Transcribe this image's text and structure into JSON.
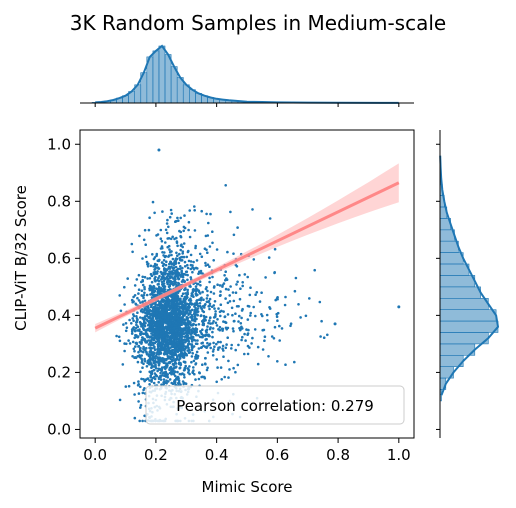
{
  "chart_data": {
    "type": "scatter",
    "title": "3K Random Samples in Medium-scale",
    "xlabel": "Mimic Score",
    "ylabel": "CLIP-ViT B/32 Score",
    "xlim": [
      -0.05,
      1.05
    ],
    "ylim": [
      -0.03,
      1.05
    ],
    "xticks": [
      "0.0",
      "0.2",
      "0.4",
      "0.6",
      "0.8",
      "1.0"
    ],
    "yticks": [
      "0.0",
      "0.2",
      "0.4",
      "0.6",
      "0.8",
      "1.0"
    ],
    "sample_count": 3000,
    "scatter_color": "#1f77b4",
    "regression": {
      "color": "#ff7f7f",
      "band_color": "#ffb3b3",
      "slope": 0.51,
      "intercept": 0.355,
      "x_range": [
        0.0,
        1.0
      ]
    },
    "annotation": "Pearson correlation: 0.279",
    "annotation_placement": "bottom-right",
    "marginal_x": {
      "type": "histogram+kde",
      "bin_centers": [
        0.0,
        0.02,
        0.04,
        0.06,
        0.08,
        0.1,
        0.12,
        0.14,
        0.16,
        0.18,
        0.2,
        0.22,
        0.24,
        0.26,
        0.28,
        0.3,
        0.32,
        0.34,
        0.36,
        0.38,
        0.4,
        0.42,
        0.44,
        0.46,
        0.48,
        0.5,
        0.55,
        0.6,
        0.7,
        0.8,
        1.0
      ],
      "counts": [
        5,
        8,
        15,
        25,
        40,
        60,
        95,
        150,
        250,
        380,
        430,
        470,
        400,
        300,
        210,
        150,
        110,
        80,
        60,
        45,
        35,
        28,
        22,
        18,
        14,
        11,
        8,
        5,
        3,
        2,
        1
      ]
    },
    "marginal_y": {
      "type": "histogram+kde",
      "bin_centers": [
        0.12,
        0.16,
        0.2,
        0.24,
        0.28,
        0.32,
        0.36,
        0.4,
        0.44,
        0.48,
        0.52,
        0.56,
        0.6,
        0.64,
        0.68,
        0.72,
        0.76,
        0.8,
        0.84,
        0.88,
        0.92,
        0.96
      ],
      "counts": [
        8,
        30,
        70,
        120,
        180,
        250,
        300,
        290,
        250,
        210,
        180,
        150,
        120,
        95,
        75,
        55,
        35,
        22,
        12,
        6,
        3,
        1
      ]
    }
  }
}
